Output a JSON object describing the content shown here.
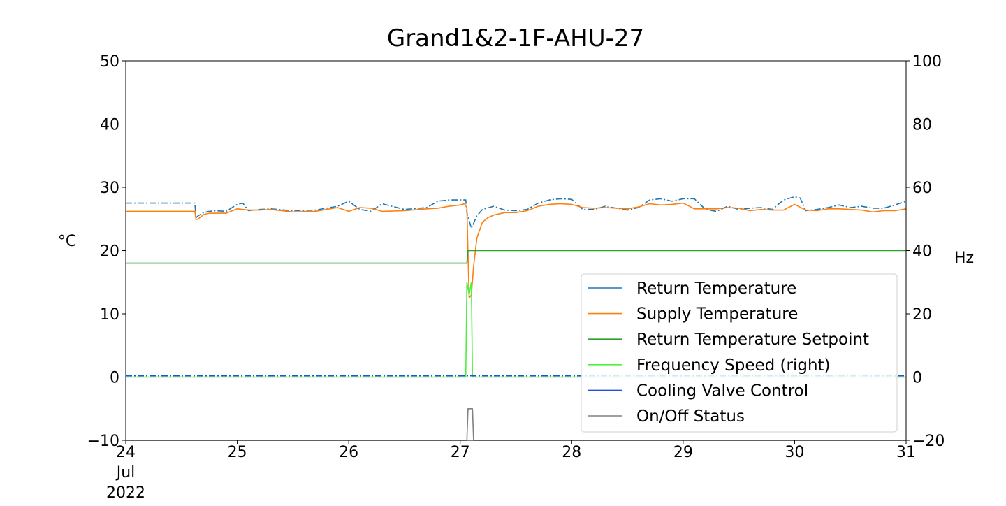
{
  "chart_data": {
    "type": "line",
    "title": "Grand1&2-1F-AHU-27",
    "ylabel_left": "°C",
    "ylabel_right": "Hz",
    "ylim_left": [
      -10,
      50
    ],
    "ylim_right": [
      -20,
      100
    ],
    "xlim": [
      24,
      31
    ],
    "x_ticks": [
      24,
      25,
      26,
      27,
      28,
      29,
      30,
      31
    ],
    "x_tick_labels": [
      "24",
      "25",
      "26",
      "27",
      "28",
      "29",
      "30",
      "31"
    ],
    "x_tick_extra_lines": [
      "Jul",
      "2022"
    ],
    "y_ticks_left": [
      -10,
      0,
      10,
      20,
      30,
      40,
      50
    ],
    "y_tick_labels_left": [
      "−10",
      "0",
      "10",
      "20",
      "30",
      "40",
      "50"
    ],
    "y_ticks_right": [
      -20,
      0,
      20,
      40,
      60,
      80,
      100
    ],
    "y_tick_labels_right": [
      "−20",
      "0",
      "20",
      "40",
      "60",
      "80",
      "100"
    ],
    "grid": false,
    "legend_position": "lower-right",
    "series": [
      {
        "name": "Return Temperature",
        "axis": "left",
        "color": "#1f77b4",
        "style": "dashdot",
        "x": [
          24.0,
          24.62,
          24.63,
          24.65,
          24.7,
          24.75,
          24.8,
          24.9,
          25.0,
          25.05,
          25.1,
          25.2,
          25.3,
          25.5,
          25.7,
          25.9,
          26.0,
          26.1,
          26.2,
          26.3,
          26.5,
          26.7,
          26.8,
          26.9,
          27.0,
          27.05,
          27.06,
          27.1,
          27.15,
          27.2,
          27.3,
          27.4,
          27.5,
          27.6,
          27.7,
          27.8,
          27.9,
          28.0,
          28.1,
          28.2,
          28.3,
          28.5,
          28.6,
          28.7,
          28.8,
          28.9,
          29.0,
          29.1,
          29.2,
          29.3,
          29.4,
          29.5,
          29.6,
          29.7,
          29.8,
          29.9,
          30.0,
          30.05,
          30.1,
          30.2,
          30.3,
          30.4,
          30.5,
          30.6,
          30.7,
          30.8,
          30.9,
          31.0
        ],
        "y": [
          27.5,
          27.5,
          25.2,
          25.5,
          26.0,
          26.2,
          26.3,
          26.2,
          27.3,
          27.5,
          26.3,
          26.5,
          26.6,
          26.3,
          26.4,
          27.0,
          27.8,
          26.5,
          26.2,
          27.4,
          26.5,
          26.8,
          27.8,
          28.0,
          28.0,
          28.0,
          26.0,
          23.5,
          25.5,
          26.5,
          27.0,
          26.4,
          26.3,
          26.5,
          27.5,
          28.0,
          28.2,
          28.1,
          26.5,
          26.5,
          27.0,
          26.4,
          26.8,
          28.0,
          28.2,
          27.8,
          28.2,
          28.2,
          26.5,
          26.2,
          27.0,
          26.5,
          26.7,
          26.8,
          26.5,
          28.0,
          28.5,
          28.3,
          26.3,
          26.5,
          26.8,
          27.2,
          26.8,
          27.0,
          26.7,
          26.7,
          27.2,
          27.8
        ]
      },
      {
        "name": "Supply Temperature",
        "axis": "left",
        "color": "#ff7f0e",
        "style": "solid",
        "x": [
          24.0,
          24.62,
          24.63,
          24.65,
          24.7,
          24.75,
          24.8,
          24.9,
          25.0,
          25.1,
          25.2,
          25.3,
          25.5,
          25.7,
          25.9,
          26.0,
          26.1,
          26.2,
          26.3,
          26.5,
          26.7,
          26.8,
          26.9,
          27.0,
          27.04,
          27.06,
          27.08,
          27.1,
          27.12,
          27.15,
          27.2,
          27.25,
          27.3,
          27.4,
          27.5,
          27.6,
          27.7,
          27.8,
          27.9,
          28.0,
          28.1,
          28.2,
          28.3,
          28.5,
          28.6,
          28.7,
          28.8,
          28.9,
          29.0,
          29.1,
          29.2,
          29.3,
          29.4,
          29.5,
          29.6,
          29.7,
          29.8,
          29.9,
          30.0,
          30.1,
          30.2,
          30.3,
          30.4,
          30.5,
          30.6,
          30.7,
          30.8,
          30.9,
          31.0
        ],
        "y": [
          26.2,
          26.2,
          24.9,
          25.0,
          25.7,
          25.9,
          25.9,
          25.9,
          26.6,
          26.4,
          26.4,
          26.5,
          26.1,
          26.2,
          26.8,
          26.2,
          26.8,
          26.7,
          26.2,
          26.3,
          26.6,
          26.7,
          27.0,
          27.2,
          27.4,
          26.8,
          12.5,
          13.0,
          17.5,
          22.0,
          24.5,
          25.2,
          25.6,
          26.0,
          26.0,
          26.3,
          27.0,
          27.3,
          27.4,
          27.3,
          26.8,
          26.7,
          26.8,
          26.6,
          26.9,
          27.4,
          27.2,
          27.3,
          27.5,
          26.6,
          26.6,
          26.6,
          26.8,
          26.7,
          26.3,
          26.5,
          26.4,
          26.4,
          27.3,
          26.4,
          26.3,
          26.6,
          26.6,
          26.5,
          26.4,
          26.1,
          26.3,
          26.3,
          26.6
        ]
      },
      {
        "name": "Return Temperature Setpoint",
        "axis": "left",
        "color": "#2ca02c",
        "style": "solid",
        "x": [
          24.0,
          27.06,
          27.07,
          31.0
        ],
        "y": [
          18.0,
          18.0,
          20.0,
          20.0
        ]
      },
      {
        "name": "Frequency Speed (right)",
        "axis": "right",
        "color": "#4ef03c",
        "style": "solid",
        "x": [
          24.0,
          27.05,
          27.06,
          27.08,
          27.1,
          27.11,
          27.12,
          31.0
        ],
        "y": [
          0.0,
          0.0,
          30.0,
          26.0,
          30.0,
          0.0,
          0.0,
          0.0
        ]
      },
      {
        "name": "Cooling Valve Control",
        "axis": "left",
        "color": "#1f50e0",
        "style": "dashdot",
        "x": [
          24.0,
          24.62,
          27.1,
          31.0
        ],
        "y": [
          0.2,
          0.2,
          0.2,
          0.2
        ]
      },
      {
        "name": "On/Off Status",
        "axis": "left",
        "color": "#808080",
        "style": "solid",
        "x": [
          24.0,
          27.06,
          27.07,
          27.11,
          27.12,
          31.0
        ],
        "y": [
          -10.0,
          -10.0,
          -5.0,
          -5.0,
          -10.0,
          -10.0
        ]
      }
    ]
  }
}
